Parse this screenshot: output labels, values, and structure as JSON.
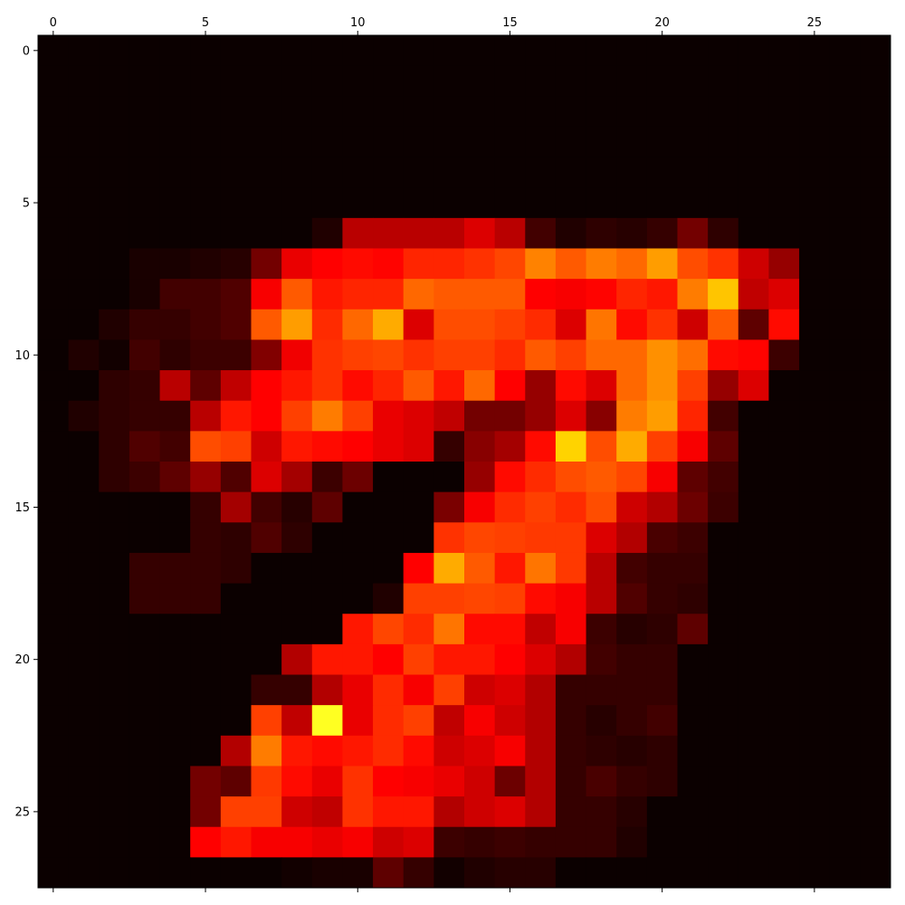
{
  "chart_data": {
    "type": "heatmap",
    "title": "",
    "xlabel": "",
    "ylabel": "",
    "colormap": "hot",
    "vmin": 0,
    "vmax": 1,
    "x_ticks": [
      0,
      5,
      10,
      15,
      20,
      25
    ],
    "y_ticks": [
      0,
      5,
      10,
      15,
      20,
      25
    ],
    "x_tick_position": "top",
    "xlim": [
      -0.5,
      27.5
    ],
    "ylim": [
      27.5,
      -0.5
    ],
    "rows": 28,
    "cols": 28,
    "values": [
      [
        0,
        0,
        0,
        0,
        0,
        0,
        0,
        0,
        0,
        0,
        0,
        0,
        0,
        0,
        0,
        0,
        0,
        0,
        0,
        0,
        0,
        0,
        0,
        0,
        0,
        0,
        0,
        0
      ],
      [
        0,
        0,
        0,
        0,
        0,
        0,
        0,
        0,
        0,
        0,
        0,
        0,
        0,
        0,
        0,
        0,
        0,
        0,
        0,
        0,
        0,
        0,
        0,
        0,
        0,
        0,
        0,
        0
      ],
      [
        0,
        0,
        0,
        0,
        0,
        0,
        0,
        0,
        0,
        0,
        0,
        0,
        0,
        0,
        0,
        0,
        0,
        0,
        0,
        0,
        0,
        0,
        0,
        0,
        0,
        0,
        0,
        0
      ],
      [
        0,
        0,
        0,
        0,
        0,
        0,
        0,
        0,
        0,
        0,
        0,
        0,
        0,
        0,
        0,
        0,
        0,
        0,
        0,
        0,
        0,
        0,
        0,
        0,
        0,
        0,
        0,
        0
      ],
      [
        0,
        0,
        0,
        0,
        0,
        0,
        0,
        0,
        0,
        0,
        0,
        0,
        0,
        0,
        0,
        0,
        0,
        0,
        0,
        0,
        0,
        0,
        0,
        0,
        0,
        0,
        0,
        0
      ],
      [
        0,
        0,
        0,
        0,
        0,
        0,
        0,
        0,
        0,
        0,
        0,
        0,
        0,
        0,
        0,
        0,
        0,
        0,
        0,
        0,
        0,
        0,
        0,
        0,
        0,
        0,
        0,
        0
      ],
      [
        0,
        0,
        0,
        0,
        0,
        0,
        0,
        0,
        0,
        0.03,
        0.25,
        0.25,
        0.25,
        0.25,
        0.3,
        0.25,
        0.08,
        0.03,
        0.05,
        0.04,
        0.06,
        0.15,
        0.05,
        0,
        0,
        0,
        0,
        0
      ],
      [
        0,
        0,
        0,
        0.02,
        0.02,
        0.03,
        0.04,
        0.15,
        0.32,
        0.36,
        0.38,
        0.37,
        0.42,
        0.42,
        0.44,
        0.47,
        0.56,
        0.5,
        0.55,
        0.52,
        0.6,
        0.48,
        0.44,
        0.28,
        0.2,
        0,
        0,
        0
      ],
      [
        0,
        0,
        0,
        0.02,
        0.08,
        0.08,
        0.1,
        0.34,
        0.5,
        0.4,
        0.42,
        0.42,
        0.52,
        0.5,
        0.5,
        0.5,
        0.36,
        0.34,
        0.37,
        0.42,
        0.4,
        0.55,
        0.66,
        0.26,
        0.3,
        0,
        0,
        0
      ],
      [
        0,
        0,
        0.03,
        0.06,
        0.06,
        0.08,
        0.1,
        0.5,
        0.6,
        0.43,
        0.52,
        0.62,
        0.3,
        0.48,
        0.48,
        0.46,
        0.43,
        0.3,
        0.54,
        0.38,
        0.44,
        0.28,
        0.5,
        0.12,
        0.38,
        0,
        0,
        0
      ],
      [
        0,
        0.03,
        0.01,
        0.08,
        0.05,
        0.07,
        0.07,
        0.17,
        0.33,
        0.44,
        0.46,
        0.47,
        0.44,
        0.46,
        0.46,
        0.43,
        0.5,
        0.46,
        0.52,
        0.52,
        0.58,
        0.53,
        0.38,
        0.37,
        0.07,
        0,
        0,
        0
      ],
      [
        0,
        0,
        0.05,
        0.06,
        0.25,
        0.12,
        0.26,
        0.36,
        0.4,
        0.44,
        0.38,
        0.42,
        0.5,
        0.4,
        0.52,
        0.36,
        0.2,
        0.38,
        0.3,
        0.52,
        0.58,
        0.46,
        0.2,
        0.3,
        0,
        0,
        0,
        0
      ],
      [
        0,
        0.03,
        0.05,
        0.06,
        0.06,
        0.25,
        0.4,
        0.36,
        0.46,
        0.55,
        0.46,
        0.32,
        0.3,
        0.26,
        0.15,
        0.15,
        0.2,
        0.3,
        0.18,
        0.55,
        0.6,
        0.42,
        0.08,
        0,
        0,
        0,
        0,
        0
      ],
      [
        0,
        0,
        0.05,
        0.1,
        0.08,
        0.48,
        0.46,
        0.28,
        0.4,
        0.38,
        0.36,
        0.32,
        0.3,
        0.06,
        0.18,
        0.22,
        0.38,
        0.68,
        0.48,
        0.62,
        0.46,
        0.34,
        0.12,
        0,
        0,
        0,
        0,
        0
      ],
      [
        0,
        0,
        0.05,
        0.07,
        0.12,
        0.2,
        0.1,
        0.3,
        0.22,
        0.07,
        0.14,
        0,
        0,
        0,
        0.2,
        0.38,
        0.43,
        0.48,
        0.5,
        0.47,
        0.34,
        0.12,
        0.08,
        0,
        0,
        0,
        0,
        0
      ],
      [
        0,
        0,
        0,
        0,
        0,
        0.06,
        0.22,
        0.08,
        0.04,
        0.12,
        0,
        0,
        0,
        0.16,
        0.34,
        0.43,
        0.46,
        0.43,
        0.48,
        0.28,
        0.24,
        0.14,
        0.07,
        0,
        0,
        0,
        0,
        0
      ],
      [
        0,
        0,
        0,
        0,
        0,
        0.06,
        0.05,
        0.1,
        0.05,
        0,
        0,
        0,
        0,
        0.44,
        0.47,
        0.46,
        0.45,
        0.45,
        0.3,
        0.24,
        0.09,
        0.07,
        0,
        0,
        0,
        0,
        0,
        0
      ],
      [
        0,
        0,
        0,
        0.06,
        0.06,
        0.06,
        0.05,
        0,
        0,
        0,
        0,
        0,
        0.36,
        0.62,
        0.5,
        0.4,
        0.54,
        0.45,
        0.25,
        0.08,
        0.06,
        0.06,
        0,
        0,
        0,
        0,
        0,
        0
      ],
      [
        0,
        0,
        0,
        0.06,
        0.06,
        0.06,
        0,
        0,
        0,
        0,
        0,
        0.03,
        0.46,
        0.46,
        0.47,
        0.46,
        0.38,
        0.34,
        0.25,
        0.1,
        0.06,
        0.05,
        0,
        0,
        0,
        0,
        0,
        0
      ],
      [
        0,
        0,
        0,
        0,
        0,
        0,
        0,
        0,
        0,
        0,
        0.4,
        0.47,
        0.43,
        0.54,
        0.38,
        0.38,
        0.26,
        0.34,
        0.07,
        0.04,
        0.05,
        0.12,
        0,
        0,
        0,
        0,
        0,
        0
      ],
      [
        0,
        0,
        0,
        0,
        0,
        0,
        0,
        0,
        0.24,
        0.4,
        0.4,
        0.36,
        0.46,
        0.4,
        0.4,
        0.36,
        0.3,
        0.24,
        0.08,
        0.06,
        0.06,
        0,
        0,
        0,
        0,
        0,
        0,
        0
      ],
      [
        0,
        0,
        0,
        0,
        0,
        0,
        0,
        0.06,
        0.06,
        0.24,
        0.32,
        0.43,
        0.34,
        0.46,
        0.28,
        0.3,
        0.24,
        0.06,
        0.06,
        0.06,
        0.06,
        0,
        0,
        0,
        0,
        0,
        0,
        0
      ],
      [
        0,
        0,
        0,
        0,
        0,
        0,
        0,
        0.46,
        0.26,
        0.78,
        0.32,
        0.43,
        0.46,
        0.26,
        0.34,
        0.28,
        0.24,
        0.06,
        0.04,
        0.06,
        0.08,
        0,
        0,
        0,
        0,
        0,
        0,
        0
      ],
      [
        0,
        0,
        0,
        0,
        0,
        0,
        0.24,
        0.55,
        0.4,
        0.38,
        0.4,
        0.43,
        0.38,
        0.28,
        0.3,
        0.34,
        0.24,
        0.06,
        0.05,
        0.04,
        0.05,
        0,
        0,
        0,
        0,
        0,
        0,
        0
      ],
      [
        0,
        0,
        0,
        0,
        0,
        0.15,
        0.12,
        0.45,
        0.38,
        0.32,
        0.44,
        0.36,
        0.34,
        0.32,
        0.28,
        0.14,
        0.24,
        0.06,
        0.09,
        0.06,
        0.05,
        0,
        0,
        0,
        0,
        0,
        0,
        0
      ],
      [
        0,
        0,
        0,
        0,
        0,
        0.15,
        0.46,
        0.46,
        0.28,
        0.26,
        0.44,
        0.4,
        0.4,
        0.24,
        0.28,
        0.3,
        0.24,
        0.06,
        0.06,
        0.04,
        0,
        0,
        0,
        0,
        0,
        0,
        0,
        0
      ],
      [
        0,
        0,
        0,
        0,
        0,
        0.36,
        0.4,
        0.34,
        0.34,
        0.32,
        0.34,
        0.28,
        0.3,
        0.07,
        0.06,
        0.07,
        0.06,
        0.06,
        0.06,
        0.03,
        0,
        0,
        0,
        0,
        0,
        0,
        0,
        0
      ],
      [
        0,
        0,
        0,
        0,
        0,
        0,
        0,
        0,
        0.01,
        0.02,
        0.02,
        0.12,
        0.06,
        0.01,
        0.03,
        0.04,
        0.04,
        0,
        0,
        0,
        0,
        0,
        0,
        0,
        0,
        0,
        0,
        0
      ]
    ]
  }
}
